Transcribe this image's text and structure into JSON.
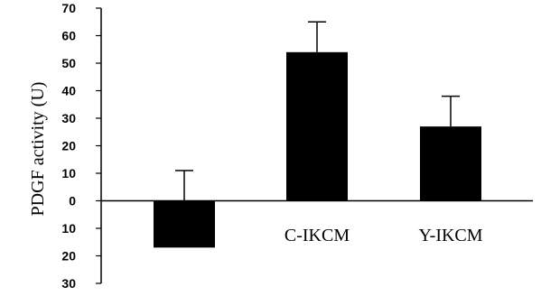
{
  "chart_data": {
    "type": "bar",
    "title": "",
    "xlabel": "",
    "ylabel": "PDGF activity (U)",
    "categories": [
      "",
      "C-IKCM",
      "Y-IKCM"
    ],
    "values": [
      -17,
      54,
      27
    ],
    "errors": [
      28,
      11,
      11
    ],
    "ylim": [
      -30,
      70
    ],
    "yticks": [
      -30,
      -20,
      -10,
      0,
      10,
      20,
      30,
      40,
      50,
      60,
      70
    ],
    "ytick_labels": [
      "30",
      "20",
      "10",
      "0",
      "10",
      "20",
      "30",
      "40",
      "50",
      "60",
      "70"
    ],
    "bar_color": "#000000",
    "grid": false,
    "legend": "none"
  }
}
